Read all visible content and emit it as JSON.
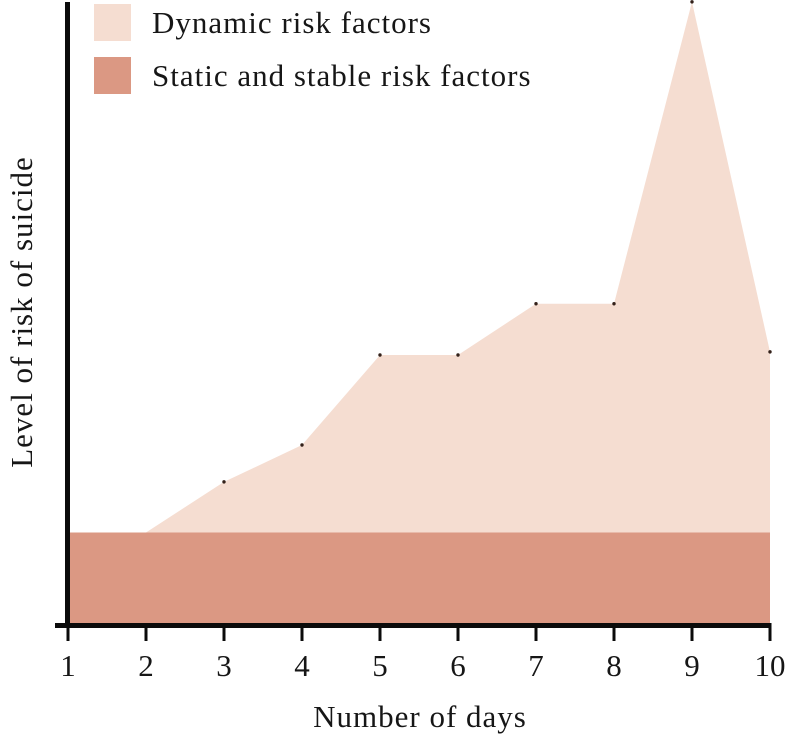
{
  "legend": {
    "items": [
      {
        "label": "Dynamic risk factors",
        "color": "#f5ddd1"
      },
      {
        "label": "Static and stable risk factors",
        "color": "#db9883"
      }
    ]
  },
  "axes": {
    "x_label": "Number of days",
    "y_label": "Level of risk of suicide",
    "x_ticks": [
      "1",
      "2",
      "3",
      "4",
      "5",
      "6",
      "7",
      "8",
      "9",
      "10"
    ],
    "y_ticks": []
  },
  "chart_data": {
    "type": "area",
    "stacked": true,
    "title": "",
    "xlabel": "Number of days",
    "ylabel": "Level of risk of suicide",
    "x": [
      1,
      2,
      3,
      4,
      5,
      6,
      7,
      8,
      9,
      10
    ],
    "xlim": [
      1,
      10
    ],
    "ylim": [
      0,
      10
    ],
    "y_axis_tick_labels": "none (qualitative risk level, 0-10 relative units)",
    "grid": false,
    "legend_position": "top-left",
    "series": [
      {
        "name": "Static and stable risk factors",
        "color": "#db9883",
        "values": [
          1.48,
          1.48,
          1.48,
          1.48,
          1.48,
          1.48,
          1.48,
          1.48,
          1.48,
          1.48
        ]
      },
      {
        "name": "Dynamic risk factors",
        "color": "#f5ddd1",
        "values": [
          0,
          0,
          0.81,
          1.4,
          2.84,
          2.84,
          3.66,
          3.66,
          8.49,
          2.89
        ]
      }
    ],
    "cumulative_top": [
      1.48,
      1.48,
      2.29,
      2.88,
      4.32,
      4.32,
      5.14,
      5.14,
      9.97,
      4.37
    ],
    "vertex_marker_days": [
      3,
      4,
      5,
      6,
      7,
      8,
      9,
      10
    ],
    "vertex_marker_color": "#33211a",
    "axis_color": "#0b0b0b"
  }
}
